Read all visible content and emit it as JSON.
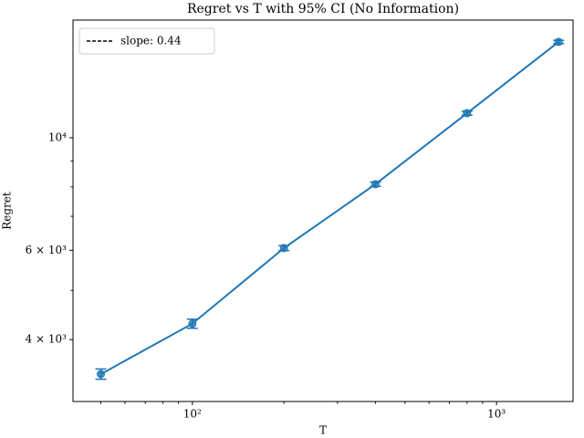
{
  "chart_data": {
    "type": "errorbar_line",
    "title": "Regret vs T with 95% CI (No Information)",
    "x_label": "T",
    "y_label": "Regret",
    "log_x": true,
    "log_y": true,
    "x": [
      50,
      100,
      200,
      400,
      800,
      1600
    ],
    "values": [
      3420,
      4300,
      6060,
      8100,
      11180,
      15450
    ],
    "ci": [
      80,
      90,
      70,
      80,
      100,
      120
    ],
    "color": "#1f77b4",
    "xlim": [
      40.5,
      1785
    ],
    "ylim": [
      3020,
      17060
    ],
    "xticks": [
      {
        "value": 100,
        "label": "10²"
      },
      {
        "value": 1000,
        "label": "10³"
      }
    ],
    "x_minor_ticks": [
      50,
      60,
      70,
      80,
      90,
      200,
      300,
      400,
      500,
      600,
      700,
      800,
      900
    ],
    "yticks": [
      {
        "value": 4000,
        "label": "4 × 10³"
      },
      {
        "value": 6000,
        "label": "6 × 10³"
      },
      {
        "value": 10000,
        "label": "10⁴"
      }
    ],
    "y_minor_ticks": [
      5000,
      7000,
      8000,
      9000
    ],
    "legend": {
      "label": "slope: 0.44",
      "loc": "upper left",
      "color": "#000000"
    }
  }
}
